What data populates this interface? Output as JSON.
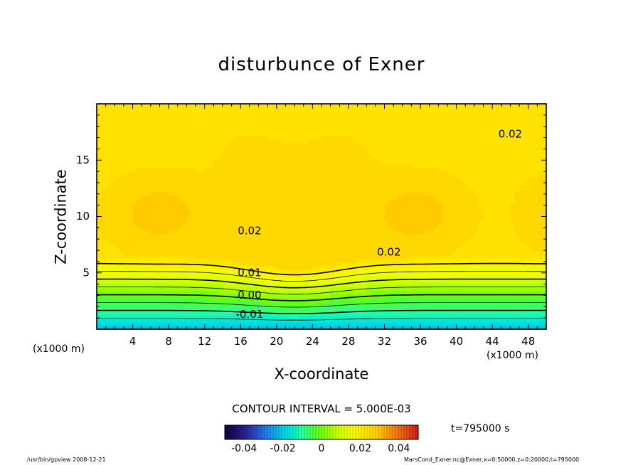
{
  "chart_data": {
    "type": "contour",
    "title": "disturbunce of Exner",
    "xlabel": "X-coordinate",
    "ylabel": "Z-coordinate",
    "x_unit_label": "(x1000 m)",
    "xlim": [
      0,
      50
    ],
    "ylim": [
      0,
      20
    ],
    "x_ticks": [
      4,
      8,
      12,
      16,
      20,
      24,
      28,
      32,
      36,
      40,
      44,
      48
    ],
    "y_ticks": [
      5,
      10,
      15
    ],
    "contour_interval_label": "CONTOUR INTERVAL = 5.000E-03",
    "contour_labels": [
      {
        "text": "0.02",
        "x": 46.0,
        "z": 17.3
      },
      {
        "text": "0.02",
        "x": 17.0,
        "z": 8.7
      },
      {
        "text": "0.02",
        "x": 32.5,
        "z": 6.8
      },
      {
        "text": "0.01",
        "x": 17.0,
        "z": 5.0
      },
      {
        "text": "0.00",
        "x": 17.0,
        "z": 3.0
      },
      {
        "text": "-0.01",
        "x": 17.0,
        "z": 1.3
      }
    ],
    "colorbar": {
      "range": [
        -0.05,
        0.05
      ],
      "ticks": [
        "-0.04",
        "-0.02",
        "0",
        "0.02",
        "0.04"
      ],
      "tick_values": [
        -0.04,
        -0.02,
        0,
        0.02,
        0.04
      ]
    },
    "time_label": "t=795000 s",
    "footer_left": "/usr/bin/gpview  2008-12-21",
    "footer_right": "MarsCond_Exner.nc@Exner,x=0:50000,z=0:20000,t=795000"
  }
}
